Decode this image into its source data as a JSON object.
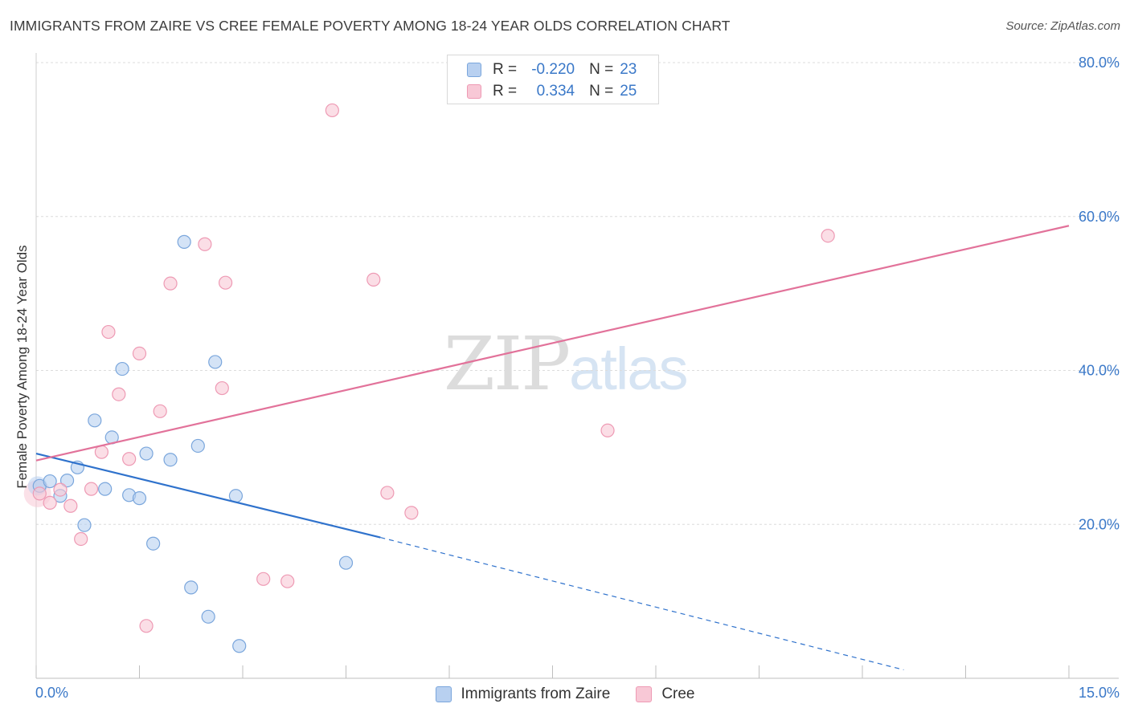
{
  "title": "IMMIGRANTS FROM ZAIRE VS CREE FEMALE POVERTY AMONG 18-24 YEAR OLDS CORRELATION CHART",
  "source": "Source: ZipAtlas.com",
  "watermark": {
    "zip": "ZIP",
    "atlas": "atlas"
  },
  "legend_top": [
    {
      "r_label": "R =",
      "r_value": "-0.220",
      "n_label": "N =",
      "n_value": "23",
      "color": "#b8d0f0",
      "border": "#7aa6dc"
    },
    {
      "r_label": "R =",
      "r_value": "0.334",
      "n_label": "N =",
      "n_value": "25",
      "color": "#f8c8d6",
      "border": "#ee9ab4"
    }
  ],
  "legend_bottom": [
    {
      "label": "Immigrants from Zaire",
      "color": "#b8d0f0",
      "border": "#7aa6dc"
    },
    {
      "label": "Cree",
      "color": "#f8c8d6",
      "border": "#ee9ab4"
    }
  ],
  "chart_data": {
    "type": "scatter",
    "title": "IMMIGRANTS FROM ZAIRE VS CREE FEMALE POVERTY AMONG 18-24 YEAR OLDS CORRELATION CHART",
    "xlabel": "",
    "ylabel": "Female Poverty Among 18-24 Year Olds",
    "xlim": [
      0,
      15
    ],
    "ylim": [
      0,
      80
    ],
    "x_ticks": [
      "0.0%",
      "15.0%"
    ],
    "y_ticks": [
      {
        "value": 20,
        "label": "20.0%"
      },
      {
        "value": 40,
        "label": "40.0%"
      },
      {
        "value": 60,
        "label": "60.0%"
      },
      {
        "value": 80,
        "label": "80.0%"
      }
    ],
    "series": [
      {
        "name": "Immigrants from Zaire",
        "color": "#7aa6dc",
        "fill": "#b8d0f0",
        "line_color": "#2f72cc",
        "trend": {
          "x0": 0,
          "y0": 29.2,
          "x1": 5.0,
          "y1": 18.3,
          "dash_to_x": 12.6,
          "dash_to_y": 1.1
        },
        "points": [
          [
            0.05,
            25.0
          ],
          [
            0.2,
            25.6
          ],
          [
            0.35,
            23.7
          ],
          [
            0.45,
            25.7
          ],
          [
            0.6,
            27.4
          ],
          [
            0.7,
            19.9
          ],
          [
            0.85,
            33.5
          ],
          [
            1.0,
            24.6
          ],
          [
            1.1,
            31.3
          ],
          [
            1.25,
            40.2
          ],
          [
            1.35,
            23.8
          ],
          [
            1.5,
            23.4
          ],
          [
            1.6,
            29.2
          ],
          [
            1.7,
            17.5
          ],
          [
            1.95,
            28.4
          ],
          [
            2.15,
            56.7
          ],
          [
            2.25,
            11.8
          ],
          [
            2.5,
            8.0
          ],
          [
            2.6,
            41.1
          ],
          [
            2.35,
            30.2
          ],
          [
            2.9,
            23.7
          ],
          [
            2.95,
            4.2
          ],
          [
            4.5,
            15.0
          ]
        ]
      },
      {
        "name": "Cree",
        "color": "#ee9ab4",
        "fill": "#f8c8d6",
        "line_color": "#e2729a",
        "trend": {
          "x0": 0,
          "y0": 28.3,
          "x1": 15.0,
          "y1": 58.8
        },
        "points": [
          [
            0.05,
            24.0
          ],
          [
            0.2,
            22.8
          ],
          [
            0.35,
            24.5
          ],
          [
            0.5,
            22.4
          ],
          [
            0.65,
            18.1
          ],
          [
            0.8,
            24.6
          ],
          [
            0.95,
            29.4
          ],
          [
            1.05,
            45.0
          ],
          [
            1.2,
            36.9
          ],
          [
            1.35,
            28.5
          ],
          [
            1.5,
            42.2
          ],
          [
            1.6,
            6.8
          ],
          [
            1.8,
            34.7
          ],
          [
            1.95,
            51.3
          ],
          [
            2.45,
            56.4
          ],
          [
            2.7,
            37.7
          ],
          [
            2.75,
            51.4
          ],
          [
            3.3,
            12.9
          ],
          [
            3.65,
            12.6
          ],
          [
            4.3,
            73.8
          ],
          [
            4.9,
            51.8
          ],
          [
            5.1,
            24.1
          ],
          [
            5.45,
            21.5
          ],
          [
            8.3,
            32.2
          ],
          [
            11.5,
            57.5
          ]
        ]
      }
    ]
  }
}
